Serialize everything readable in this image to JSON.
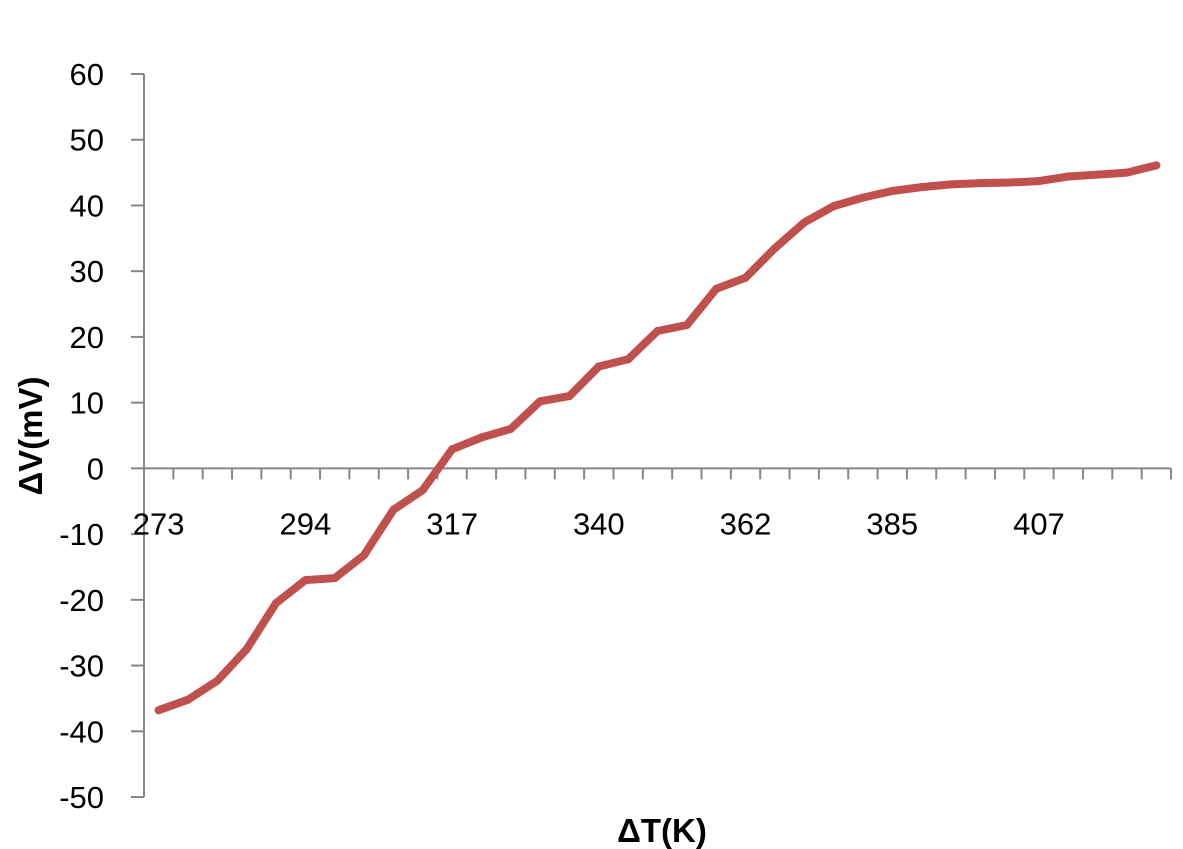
{
  "chart_data": {
    "type": "line",
    "title": "",
    "xlabel": "ΔT(K)",
    "ylabel": "ΔV(mV)",
    "ylim": [
      -50,
      60
    ],
    "y_ticks": [
      -50,
      -40,
      -30,
      -20,
      -10,
      0,
      10,
      20,
      30,
      40,
      50,
      60
    ],
    "x_tick_labels": [
      "273",
      "294",
      "317",
      "340",
      "362",
      "385",
      "407"
    ],
    "grid": false,
    "legend": "none",
    "series": [
      {
        "color": "#c0504d",
        "values": [
          -36.8,
          -35.2,
          -32.3,
          -27.5,
          -20.5,
          -17.0,
          -16.7,
          -13.2,
          -6.3,
          -3.3,
          2.9,
          4.7,
          6.0,
          10.2,
          11.0,
          15.5,
          16.6,
          20.9,
          21.8,
          27.3,
          29.0,
          33.5,
          37.4,
          39.9,
          41.2,
          42.2,
          42.8,
          43.2,
          43.4,
          43.5,
          43.7,
          44.4,
          44.7,
          45.0,
          46.1
        ]
      }
    ]
  }
}
